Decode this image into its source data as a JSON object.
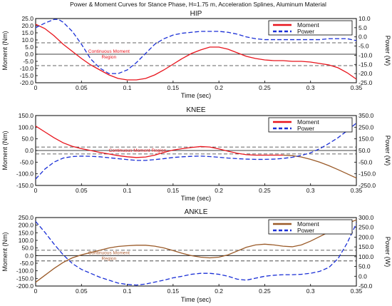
{
  "figure_title": "Power & Moment Curves for Stance Phase, H=1.75 m, Acceleration Splines, Aluminum Material",
  "colors": {
    "hip_moment": "#e8141c",
    "knee_moment_early": "#e8141c",
    "knee_moment_late": "#9a5a28",
    "ankle_moment": "#9a5a28",
    "power": "#1a2fd6",
    "dashed_ref": "#333333",
    "region_text": "#e8141c",
    "ankle_region_text": "#b0643a"
  },
  "chart_data": [
    {
      "type": "line",
      "title": "HIP",
      "xlabel": "Time (sec)",
      "ylabel": "Moment (Nm)",
      "y2label": "Power (W)",
      "xlim": [
        0,
        0.35
      ],
      "ylim": [
        -20,
        25
      ],
      "y2lim": [
        -25,
        10
      ],
      "xticks": [
        "0",
        "0.05",
        "0.1",
        "0.15",
        "0.2",
        "0.25",
        "0.3",
        "0.35"
      ],
      "yticks": [
        "25.0",
        "20.0",
        "15.0",
        "10.0",
        "5.0",
        "0.0",
        "-5.0",
        "-10.0",
        "-15.0",
        "-20.0"
      ],
      "y2ticks": [
        "10.0",
        "5.0",
        "0.0",
        "-5.0",
        "-10.0",
        "-15.0",
        "-20.0",
        "-25.0"
      ],
      "legend": [
        "Moment",
        "Power"
      ],
      "legend_position": "top-right",
      "region_label": [
        "Continuous Moment",
        "Region"
      ],
      "region_bounds": [
        8,
        -8
      ],
      "series": [
        {
          "name": "Moment",
          "x": [
            0,
            0.01,
            0.02,
            0.03,
            0.04,
            0.05,
            0.06,
            0.07,
            0.08,
            0.09,
            0.1,
            0.11,
            0.12,
            0.13,
            0.14,
            0.15,
            0.16,
            0.17,
            0.18,
            0.19,
            0.2,
            0.21,
            0.22,
            0.23,
            0.24,
            0.25,
            0.26,
            0.27,
            0.28,
            0.29,
            0.3,
            0.31,
            0.32,
            0.33,
            0.34,
            0.35
          ],
          "y": [
            21,
            18,
            13,
            7,
            2,
            -3,
            -7.5,
            -11,
            -14.5,
            -17,
            -18,
            -18,
            -17,
            -14.5,
            -11,
            -7,
            -3,
            0.5,
            3,
            5,
            5,
            3.5,
            1,
            -1.5,
            -3,
            -4,
            -4.5,
            -4.5,
            -5,
            -5,
            -5.5,
            -6.5,
            -7.5,
            -9.5,
            -13,
            -17.5
          ]
        },
        {
          "name": "Power",
          "axis": "right",
          "x": [
            0,
            0.01,
            0.02,
            0.025,
            0.03,
            0.04,
            0.05,
            0.06,
            0.07,
            0.08,
            0.09,
            0.1,
            0.11,
            0.12,
            0.13,
            0.14,
            0.15,
            0.16,
            0.17,
            0.18,
            0.19,
            0.2,
            0.21,
            0.22,
            0.23,
            0.24,
            0.25,
            0.26,
            0.27,
            0.28,
            0.29,
            0.3,
            0.31,
            0.32,
            0.33,
            0.34,
            0.35
          ],
          "y": [
            5,
            7.5,
            9.5,
            9.5,
            8,
            3,
            -4,
            -12,
            -17,
            -20,
            -20,
            -18,
            -14,
            -9,
            -4,
            -1,
            1,
            2,
            2.5,
            3,
            3,
            3,
            2.5,
            1.5,
            0,
            -1,
            -1.5,
            -1.5,
            -1.5,
            -1.5,
            -1.5,
            -1.5,
            -1.5,
            -1,
            -1,
            -1,
            -2
          ]
        }
      ]
    },
    {
      "type": "line",
      "title": "KNEE",
      "xlabel": "Time (sec)",
      "ylabel": "Moment (Nm)",
      "y2label": "Power (W)",
      "xlim": [
        0,
        0.35
      ],
      "ylim": [
        -150,
        150
      ],
      "y2lim": [
        -250,
        350
      ],
      "xticks": [
        "0",
        "0.05",
        "0.1",
        "0.15",
        "0.2",
        "0.25",
        "0.3",
        "0.35"
      ],
      "yticks": [
        "150.0",
        "100.0",
        "50.0",
        "0.0",
        "-50.0",
        "-100.0",
        "-150.0"
      ],
      "y2ticks": [
        "350.0",
        "250.0",
        "150.0",
        "50.0",
        "-50.0",
        "-150.0",
        "-250.0"
      ],
      "legend": [
        "Moment",
        "Power"
      ],
      "legend_position": "top-right",
      "region_label": [
        "Continuous Moment Region"
      ],
      "region_bounds": [
        15,
        -15
      ],
      "series": [
        {
          "name": "Moment",
          "x": [
            0,
            0.01,
            0.02,
            0.03,
            0.04,
            0.05,
            0.06,
            0.07,
            0.08,
            0.09,
            0.1,
            0.11,
            0.12,
            0.13,
            0.14,
            0.15,
            0.16,
            0.17,
            0.18,
            0.19,
            0.2,
            0.21,
            0.22,
            0.23,
            0.24,
            0.25,
            0.26,
            0.27,
            0.28,
            0.29,
            0.3,
            0.31,
            0.32,
            0.33,
            0.34,
            0.35
          ],
          "y": [
            105,
            80,
            55,
            33,
            18,
            8,
            0,
            -8,
            -15,
            -22,
            -27,
            -30,
            -28,
            -20,
            -8,
            2,
            8,
            13,
            17,
            15,
            7,
            -3,
            -12,
            -18,
            -20,
            -20,
            -20,
            -20,
            -22,
            -28,
            -38,
            -50,
            -65,
            -82,
            -100,
            -118
          ]
        },
        {
          "name": "Power",
          "axis": "right",
          "x": [
            0,
            0.01,
            0.02,
            0.03,
            0.04,
            0.05,
            0.06,
            0.07,
            0.08,
            0.09,
            0.1,
            0.11,
            0.12,
            0.13,
            0.14,
            0.15,
            0.16,
            0.17,
            0.18,
            0.19,
            0.2,
            0.21,
            0.22,
            0.23,
            0.24,
            0.25,
            0.26,
            0.27,
            0.28,
            0.29,
            0.3,
            0.31,
            0.32,
            0.33,
            0.34,
            0.35
          ],
          "y": [
            -195,
            -110,
            -50,
            -15,
            -2,
            2,
            0,
            -4,
            -12,
            -20,
            -28,
            -35,
            -35,
            -28,
            -20,
            -10,
            -4,
            0,
            2,
            -2,
            -8,
            -15,
            -20,
            -24,
            -26,
            -26,
            -24,
            -18,
            -8,
            8,
            30,
            65,
            110,
            160,
            220,
            285
          ]
        }
      ]
    },
    {
      "type": "line",
      "title": "ANKLE",
      "xlabel": "Time (sec)",
      "ylabel": "Moment (Nm)",
      "y2label": "Power (W)",
      "xlim": [
        0,
        0.35
      ],
      "ylim": [
        -200,
        250
      ],
      "y2lim": [
        -50,
        300
      ],
      "xticks": [
        "0",
        "0.05",
        "0.1",
        "0.15",
        "0.2",
        "0.25",
        "0.3",
        "0.35"
      ],
      "yticks": [
        "250.0",
        "200.0",
        "150.0",
        "100.0",
        "50.0",
        "0.0",
        "-50.0",
        "-100.0",
        "-150.0",
        "-200.0"
      ],
      "y2ticks": [
        "300.0",
        "250.0",
        "200.0",
        "150.0",
        "100.0",
        "50.0",
        "0.0",
        "-50.0"
      ],
      "legend": [
        "Moment",
        "Power"
      ],
      "legend_position": "top-right",
      "region_label": [
        "Continuous Moment",
        "Region"
      ],
      "region_bounds": [
        35,
        -35
      ],
      "series": [
        {
          "name": "Moment",
          "x": [
            0,
            0.01,
            0.02,
            0.03,
            0.04,
            0.05,
            0.06,
            0.07,
            0.08,
            0.09,
            0.1,
            0.11,
            0.12,
            0.13,
            0.14,
            0.15,
            0.16,
            0.17,
            0.18,
            0.19,
            0.2,
            0.21,
            0.22,
            0.23,
            0.24,
            0.25,
            0.26,
            0.27,
            0.28,
            0.29,
            0.3,
            0.31,
            0.32,
            0.33,
            0.34,
            0.35
          ],
          "y": [
            -175,
            -130,
            -85,
            -45,
            -15,
            5,
            20,
            35,
            50,
            60,
            65,
            68,
            68,
            62,
            50,
            33,
            15,
            0,
            -10,
            -15,
            -10,
            5,
            30,
            55,
            70,
            75,
            70,
            62,
            58,
            70,
            95,
            125,
            155,
            185,
            210,
            235
          ]
        },
        {
          "name": "Power",
          "axis": "right",
          "x": [
            0,
            0.01,
            0.02,
            0.03,
            0.04,
            0.05,
            0.06,
            0.07,
            0.08,
            0.09,
            0.1,
            0.11,
            0.12,
            0.13,
            0.14,
            0.15,
            0.16,
            0.17,
            0.18,
            0.19,
            0.2,
            0.21,
            0.22,
            0.23,
            0.24,
            0.25,
            0.26,
            0.27,
            0.28,
            0.29,
            0.3,
            0.31,
            0.32,
            0.33,
            0.34,
            0.35
          ],
          "y": [
            280,
            225,
            165,
            110,
            65,
            35,
            15,
            -5,
            -20,
            -35,
            -42,
            -45,
            -40,
            -30,
            -20,
            -8,
            0,
            10,
            15,
            15,
            10,
            0,
            -15,
            -20,
            -10,
            0,
            5,
            8,
            8,
            10,
            15,
            25,
            45,
            90,
            170,
            270
          ]
        }
      ]
    }
  ]
}
